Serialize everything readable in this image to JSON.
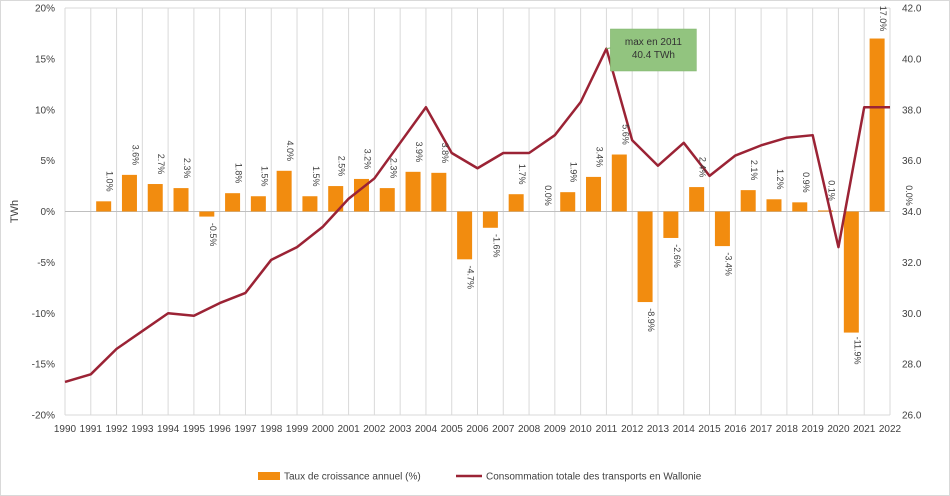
{
  "chart_data": {
    "type": "bar+line",
    "ylabel_left": "TWh",
    "y_left_lim": [
      -20,
      20
    ],
    "y_left_ticks": [
      "-20%",
      "-15%",
      "-10%",
      "-5%",
      "0%",
      "5%",
      "10%",
      "15%",
      "20%"
    ],
    "y_right_lim": [
      26.0,
      42.0
    ],
    "y_right_ticks": [
      "26.0",
      "28.0",
      "30.0",
      "32.0",
      "34.0",
      "36.0",
      "38.0",
      "40.0",
      "42.0"
    ],
    "grid": "vertical",
    "categories": [
      "1990",
      "1991",
      "1992",
      "1993",
      "1994",
      "1995",
      "1996",
      "1997",
      "1998",
      "1999",
      "2000",
      "2001",
      "2002",
      "2003",
      "2004",
      "2005",
      "2006",
      "2007",
      "2008",
      "2009",
      "2010",
      "2011",
      "2012",
      "2013",
      "2014",
      "2015",
      "2016",
      "2017",
      "2018",
      "2019",
      "2020",
      "2021",
      "2022"
    ],
    "series": [
      {
        "name": "Taux de croissance annuel (%)",
        "type": "bar",
        "axis": "left",
        "color": "#F28C0F",
        "values": [
          null,
          1.0,
          3.6,
          2.7,
          2.3,
          -0.5,
          1.8,
          1.5,
          4.0,
          1.5,
          2.5,
          3.2,
          2.3,
          3.9,
          3.8,
          -4.7,
          -1.6,
          1.7,
          0.0,
          1.9,
          3.4,
          5.6,
          -8.9,
          -2.6,
          2.4,
          -3.4,
          2.1,
          1.2,
          0.9,
          0.1,
          -11.9,
          17.0,
          0.0
        ],
        "labels": [
          "",
          "1.0%",
          "3.6%",
          "2.7%",
          "2.3%",
          "-0.5%",
          "1.8%",
          "1.5%",
          "4.0%",
          "1.5%",
          "2.5%",
          "3.2%",
          "2.3%",
          "3.9%",
          "3.8%",
          "-4.7%",
          "-1.6%",
          "1.7%",
          "0.0%",
          "1.9%",
          "3.4%",
          "5.6%",
          "-8.9%",
          "-2.6%",
          "2.4%",
          "-3.4%",
          "2.1%",
          "1.2%",
          "0.9%",
          "0.1%",
          "-11.9%",
          "17.0%",
          "0.0%"
        ]
      },
      {
        "name": "Consommation totale des transports en Wallonie",
        "type": "line",
        "axis": "right",
        "color": "#9B2335",
        "values": [
          27.3,
          27.6,
          28.6,
          29.3,
          30.0,
          29.9,
          30.4,
          30.8,
          32.1,
          32.6,
          33.4,
          34.5,
          35.3,
          36.7,
          38.1,
          36.3,
          35.7,
          36.3,
          36.3,
          37.0,
          38.3,
          40.4,
          36.8,
          35.8,
          36.7,
          35.4,
          36.2,
          36.6,
          36.9,
          37.0,
          32.6,
          38.1,
          38.1
        ]
      }
    ],
    "annotation": {
      "lines": [
        "max en 2011",
        "40.4 TWh"
      ],
      "x": "2011",
      "y": 40.4,
      "fill": "#92C47F"
    },
    "legend": "bottom"
  }
}
